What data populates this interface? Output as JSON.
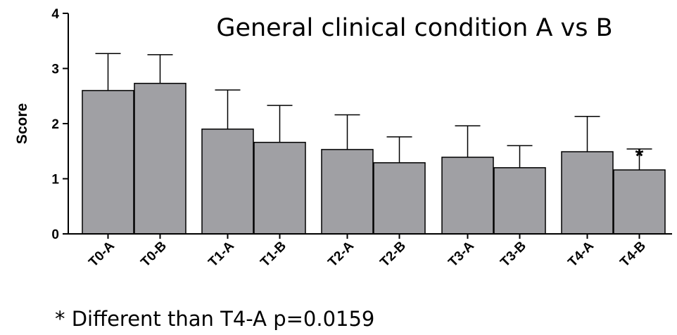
{
  "chart_data": {
    "type": "bar",
    "title": "General clinical condition A vs B",
    "ylabel": "Score",
    "xlabel": "",
    "ylim": [
      0,
      4
    ],
    "yticks": [
      0,
      1,
      2,
      3,
      4
    ],
    "categories": [
      "T0-A",
      "T0-B",
      "T1-A",
      "T1-B",
      "T2-A",
      "T2-B",
      "T3-A",
      "T3-B",
      "T4-A",
      "T4-B"
    ],
    "values": [
      2.6,
      2.73,
      1.9,
      1.66,
      1.53,
      1.29,
      1.39,
      1.2,
      1.49,
      1.16
    ],
    "error_upper": [
      3.27,
      3.25,
      2.61,
      2.33,
      2.16,
      1.76,
      1.96,
      1.6,
      2.13,
      1.54
    ],
    "significance_marker": {
      "category": "T4-B",
      "symbol": "*"
    },
    "bar_color": "#a0a0a4",
    "grid": false
  },
  "footnote": "* Different than T4-A p=0.0159"
}
